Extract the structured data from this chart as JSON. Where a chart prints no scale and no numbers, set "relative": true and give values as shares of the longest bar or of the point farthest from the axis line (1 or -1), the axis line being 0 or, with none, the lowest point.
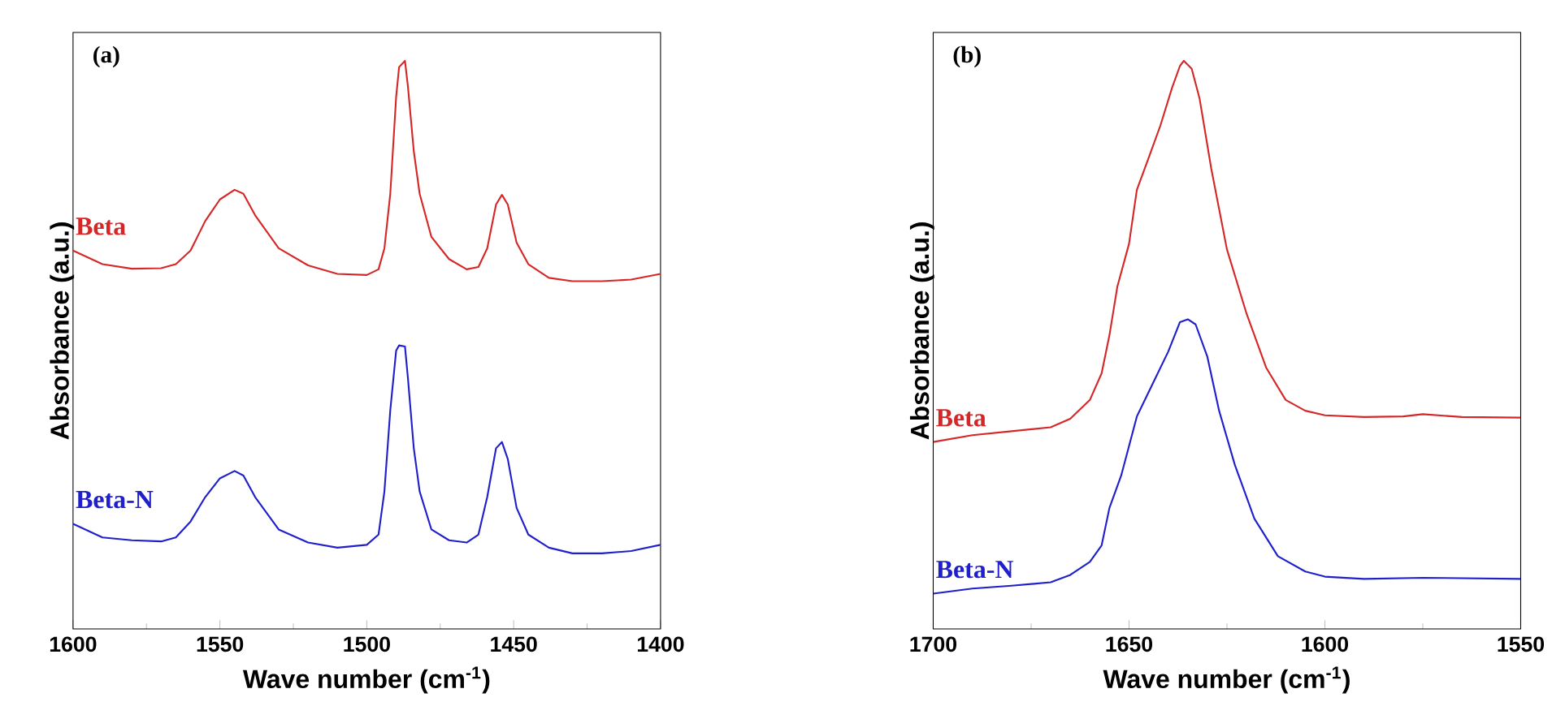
{
  "chart_data": [
    {
      "type": "line",
      "relative": true,
      "tick_labels": "x",
      "xlabel": "Wave number (cm$^{-1}$)",
      "ylabel": "Absorbance (a.u.)",
      "annotations": [
        "(a)"
      ],
      "xlim": [
        1600,
        1400
      ],
      "xticks": [
        1600,
        {
          "value": 1575,
          "label": null
        },
        1550,
        {
          "value": 1525,
          "label": null
        },
        1500,
        {
          "value": 1475,
          "label": null
        },
        1450,
        {
          "value": 1425,
          "label": null
        },
        1400
      ],
      "x": [
        1600,
        1590,
        1580,
        1570,
        1565,
        1560,
        1555,
        1550,
        1545,
        1542,
        1538,
        1530,
        1520,
        1510,
        1500,
        1496,
        1494,
        1492,
        1490,
        1489,
        1487,
        1486,
        1484,
        1482,
        1478,
        1472,
        1466,
        1462,
        1459,
        1456,
        1454,
        1452,
        1449,
        1445,
        1438,
        1430,
        1420,
        1410,
        1400
      ],
      "series": [
        {
          "name": "Beta",
          "color": "#d62728",
          "values": [
            0.666,
            0.642,
            0.634,
            0.635,
            0.642,
            0.666,
            0.718,
            0.756,
            0.773,
            0.766,
            0.728,
            0.67,
            0.64,
            0.625,
            0.623,
            0.633,
            0.67,
            0.766,
            0.937,
            0.989,
            1.0,
            0.955,
            0.841,
            0.766,
            0.69,
            0.651,
            0.633,
            0.637,
            0.67,
            0.747,
            0.764,
            0.747,
            0.68,
            0.642,
            0.618,
            0.612,
            0.612,
            0.615,
            0.625
          ]
        },
        {
          "name": "Beta-N",
          "color": "#1f1fcc",
          "values": [
            0.185,
            0.161,
            0.156,
            0.154,
            0.161,
            0.189,
            0.232,
            0.265,
            0.278,
            0.27,
            0.232,
            0.175,
            0.152,
            0.143,
            0.148,
            0.166,
            0.242,
            0.385,
            0.49,
            0.499,
            0.497,
            0.442,
            0.318,
            0.242,
            0.175,
            0.156,
            0.152,
            0.166,
            0.232,
            0.318,
            0.329,
            0.299,
            0.213,
            0.166,
            0.143,
            0.133,
            0.133,
            0.137,
            0.148
          ]
        }
      ]
    },
    {
      "type": "line",
      "relative": true,
      "tick_labels": "x",
      "xlabel": "Wave number (cm$^{-1}$)",
      "ylabel": "Absorbance (a.u.)",
      "annotations": [
        "(b)"
      ],
      "xlim": [
        1700,
        1550
      ],
      "xticks": [
        1700,
        {
          "value": 1675,
          "label": null
        },
        1650,
        {
          "value": 1625,
          "label": null
        },
        1600,
        {
          "value": 1575,
          "label": null
        },
        1550
      ],
      "series": [
        {
          "name": "Beta",
          "color": "#d62728",
          "x": [
            1700,
            1690,
            1680,
            1670,
            1665,
            1660,
            1657,
            1655,
            1653,
            1650,
            1648,
            1645,
            1642,
            1639,
            1637,
            1636,
            1634,
            1632,
            1629,
            1625,
            1620,
            1615,
            1610,
            1605,
            1600,
            1590,
            1580,
            1575,
            1565,
            1550
          ],
          "values": [
            0.329,
            0.341,
            0.348,
            0.355,
            0.37,
            0.403,
            0.45,
            0.517,
            0.602,
            0.678,
            0.773,
            0.829,
            0.886,
            0.953,
            0.991,
            1.0,
            0.986,
            0.934,
            0.81,
            0.668,
            0.555,
            0.46,
            0.403,
            0.384,
            0.376,
            0.373,
            0.374,
            0.378,
            0.373,
            0.372
          ]
        },
        {
          "name": "Beta-N",
          "color": "#1f1fcc",
          "x": [
            1700,
            1690,
            1680,
            1670,
            1665,
            1660,
            1657,
            1655,
            1652,
            1648,
            1644,
            1640,
            1637,
            1635,
            1633,
            1630,
            1627,
            1623,
            1618,
            1612,
            1605,
            1600,
            1590,
            1575,
            1550
          ],
          "values": [
            0.062,
            0.071,
            0.076,
            0.082,
            0.095,
            0.118,
            0.147,
            0.213,
            0.27,
            0.374,
            0.431,
            0.488,
            0.54,
            0.545,
            0.536,
            0.479,
            0.384,
            0.289,
            0.194,
            0.128,
            0.101,
            0.092,
            0.088,
            0.09,
            0.088
          ]
        }
      ]
    }
  ]
}
